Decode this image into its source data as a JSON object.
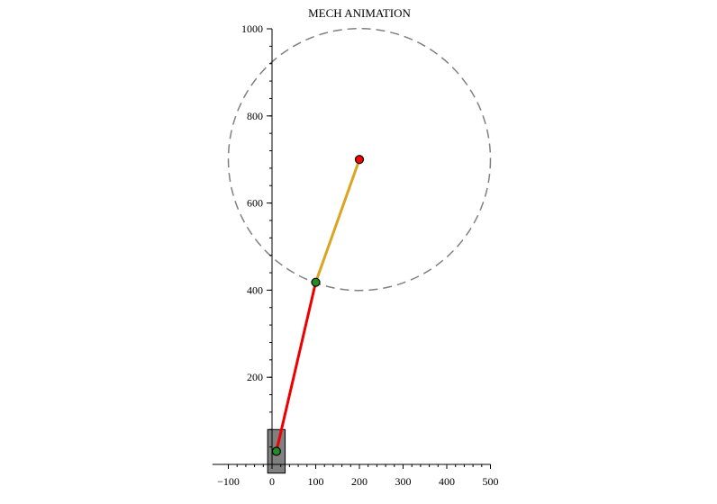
{
  "chart_data": {
    "type": "mechanism-animation",
    "title": "MECH ANIMATION",
    "xlim": [
      -120,
      500
    ],
    "ylim": [
      0,
      1000
    ],
    "x_ticks": [
      -100,
      0,
      100,
      200,
      300,
      400,
      500
    ],
    "x_tick_labels": [
      "−100",
      "0",
      "100",
      "200",
      "300",
      "400",
      "500"
    ],
    "y_ticks": [
      200,
      400,
      600,
      800,
      1000
    ],
    "y_tick_labels": [
      "200",
      "400",
      "600",
      "800",
      "1000"
    ],
    "grid": false,
    "crank_path_circle": {
      "center": [
        200,
        700
      ],
      "radius": 300,
      "style": "dashed",
      "color": "#808080"
    },
    "links": [
      {
        "name": "crank",
        "from": [
          200,
          700
        ],
        "to": [
          100,
          418
        ],
        "color": "#DAA520"
      },
      {
        "name": "connecting-rod",
        "from": [
          100,
          418
        ],
        "to": [
          10,
          30
        ],
        "color": "#EE0000"
      }
    ],
    "slider_block": {
      "x_range": [
        -10,
        30
      ],
      "y_range": [
        -20,
        80
      ],
      "color": "#808080"
    },
    "joints": [
      {
        "name": "fixed-pivot",
        "point": [
          200,
          700
        ],
        "color": "#FF0000"
      },
      {
        "name": "crank-pin",
        "point": [
          100,
          418
        ],
        "color": "#228B22"
      },
      {
        "name": "slider-pin",
        "point": [
          10,
          30
        ],
        "color": "#228B22"
      }
    ]
  }
}
